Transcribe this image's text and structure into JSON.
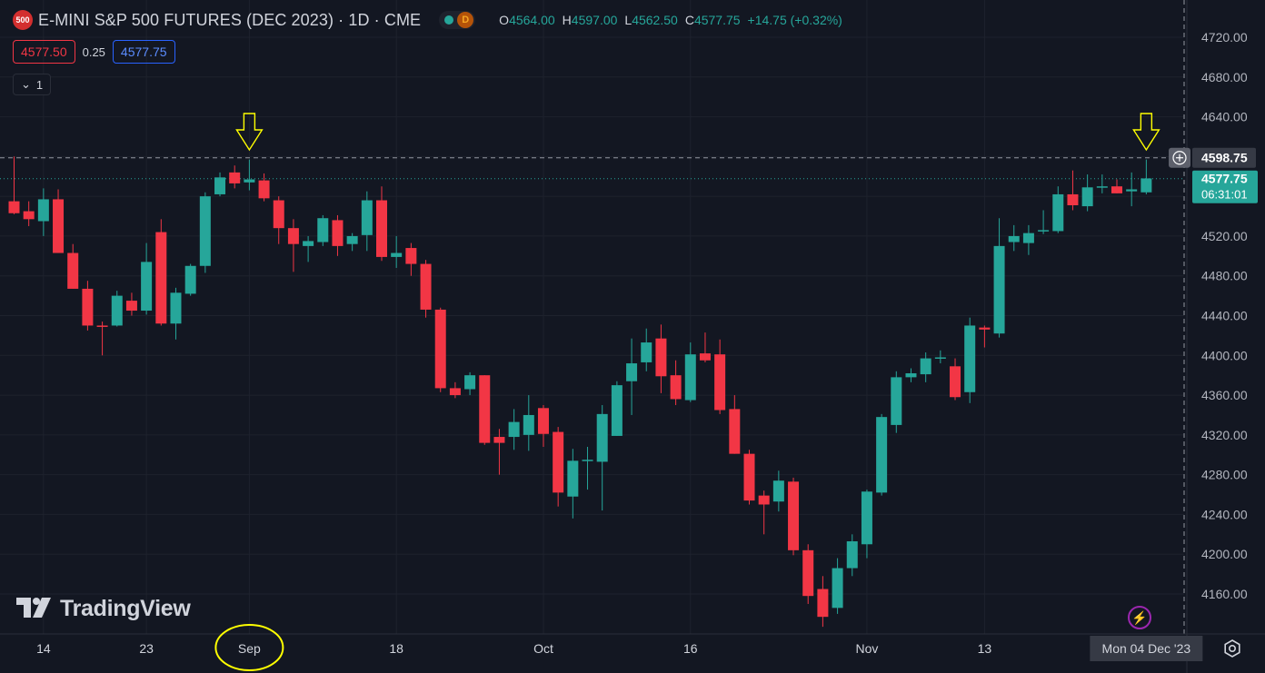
{
  "header": {
    "symbol_badge": "500",
    "title": "E-MINI S&P 500 FUTURES (DEC 2023) · 1D · CME",
    "status_badge": "D",
    "ohlc": {
      "o_label": "O",
      "o_value": "4564.00",
      "h_label": "H",
      "h_value": "4597.00",
      "l_label": "L",
      "l_value": "4562.50",
      "c_label": "C",
      "c_value": "4577.75",
      "change": "+14.75 (+0.32%)"
    }
  },
  "trade": {
    "sell_price": "4577.50",
    "spread": "0.25",
    "buy_price": "4577.75"
  },
  "collapse_button": {
    "chevron": "⌄",
    "count": "1"
  },
  "logo": {
    "text": "TradingView"
  },
  "colors": {
    "up": "#26a69a",
    "down": "#f23645",
    "background": "#131722",
    "grid": "#1e222d",
    "annotation": "#ffff00"
  },
  "chart_data": {
    "type": "candlestick",
    "y_ticks": [
      4160,
      4200,
      4240,
      4280,
      4320,
      4360,
      4400,
      4440,
      4480,
      4520,
      4560,
      4600,
      4640,
      4680,
      4720
    ],
    "y_tick_labels": [
      "4160.00",
      "4200.00",
      "4240.00",
      "4280.00",
      "4320.00",
      "4360.00",
      "4400.00",
      "4440.00",
      "4480.00",
      "4520.00",
      "4560.00",
      "4600.00",
      "4640.00",
      "4680.00",
      "4720.00"
    ],
    "ylim": [
      4128,
      4738
    ],
    "x_tick_labels": [
      {
        "label": "14",
        "index": 2
      },
      {
        "label": "23",
        "index": 9
      },
      {
        "label": "Sep",
        "index": 16
      },
      {
        "label": "18",
        "index": 26
      },
      {
        "label": "Oct",
        "index": 36
      },
      {
        "label": "16",
        "index": 46
      },
      {
        "label": "Nov",
        "index": 58
      },
      {
        "label": "13",
        "index": 66
      }
    ],
    "crosshair_price_label": "4598.75",
    "crosshair_price": 4598.75,
    "last_price_label": "4577.75",
    "last_price": 4577.75,
    "countdown": "06:31:01",
    "date_label": "Mon 04 Dec '23",
    "candles": [
      {
        "o": 4555,
        "h": 4600,
        "l": 4542,
        "c": 4543
      },
      {
        "o": 4545,
        "h": 4555,
        "l": 4530,
        "c": 4537
      },
      {
        "o": 4535,
        "h": 4568,
        "l": 4520,
        "c": 4557
      },
      {
        "o": 4557,
        "h": 4567,
        "l": 4503,
        "c": 4503
      },
      {
        "o": 4503,
        "h": 4512,
        "l": 4467,
        "c": 4467
      },
      {
        "o": 4467,
        "h": 4475,
        "l": 4425,
        "c": 4430
      },
      {
        "o": 4430,
        "h": 4434,
        "l": 4400,
        "c": 4429
      },
      {
        "o": 4430,
        "h": 4465,
        "l": 4429,
        "c": 4460
      },
      {
        "o": 4455,
        "h": 4463,
        "l": 4440,
        "c": 4445
      },
      {
        "o": 4445,
        "h": 4513,
        "l": 4441,
        "c": 4494
      },
      {
        "o": 4524,
        "h": 4537,
        "l": 4430,
        "c": 4432
      },
      {
        "o": 4432,
        "h": 4468,
        "l": 4416,
        "c": 4463
      },
      {
        "o": 4462,
        "h": 4492,
        "l": 4460,
        "c": 4490
      },
      {
        "o": 4490,
        "h": 4564,
        "l": 4483,
        "c": 4560
      },
      {
        "o": 4562,
        "h": 4584,
        "l": 4560,
        "c": 4579
      },
      {
        "o": 4584,
        "h": 4591,
        "l": 4568,
        "c": 4573
      },
      {
        "o": 4574,
        "h": 4597,
        "l": 4566,
        "c": 4577
      },
      {
        "o": 4576,
        "h": 4583,
        "l": 4555,
        "c": 4558
      },
      {
        "o": 4556,
        "h": 4560,
        "l": 4512,
        "c": 4528
      },
      {
        "o": 4528,
        "h": 4537,
        "l": 4484,
        "c": 4512
      },
      {
        "o": 4510,
        "h": 4520,
        "l": 4494,
        "c": 4515
      },
      {
        "o": 4514,
        "h": 4541,
        "l": 4510,
        "c": 4538
      },
      {
        "o": 4536,
        "h": 4541,
        "l": 4500,
        "c": 4510
      },
      {
        "o": 4512,
        "h": 4523,
        "l": 4505,
        "c": 4520
      },
      {
        "o": 4521,
        "h": 4565,
        "l": 4505,
        "c": 4556
      },
      {
        "o": 4556,
        "h": 4570,
        "l": 4495,
        "c": 4499
      },
      {
        "o": 4499,
        "h": 4520,
        "l": 4488,
        "c": 4503
      },
      {
        "o": 4508,
        "h": 4513,
        "l": 4480,
        "c": 4492
      },
      {
        "o": 4492,
        "h": 4496,
        "l": 4438,
        "c": 4446
      },
      {
        "o": 4446,
        "h": 4448,
        "l": 4363,
        "c": 4367
      },
      {
        "o": 4367,
        "h": 4373,
        "l": 4357,
        "c": 4360
      },
      {
        "o": 4366,
        "h": 4383,
        "l": 4360,
        "c": 4380
      },
      {
        "o": 4380,
        "h": 4380,
        "l": 4310,
        "c": 4312
      },
      {
        "o": 4318,
        "h": 4326,
        "l": 4280,
        "c": 4312
      },
      {
        "o": 4318,
        "h": 4346,
        "l": 4305,
        "c": 4333
      },
      {
        "o": 4320,
        "h": 4360,
        "l": 4304,
        "c": 4340
      },
      {
        "o": 4347,
        "h": 4350,
        "l": 4308,
        "c": 4321
      },
      {
        "o": 4323,
        "h": 4328,
        "l": 4248,
        "c": 4262
      },
      {
        "o": 4258,
        "h": 4306,
        "l": 4236,
        "c": 4294
      },
      {
        "o": 4294,
        "h": 4308,
        "l": 4265,
        "c": 4295
      },
      {
        "o": 4293,
        "h": 4350,
        "l": 4244,
        "c": 4341
      },
      {
        "o": 4319,
        "h": 4374,
        "l": 4319,
        "c": 4370
      },
      {
        "o": 4374,
        "h": 4417,
        "l": 4340,
        "c": 4392
      },
      {
        "o": 4393,
        "h": 4427,
        "l": 4384,
        "c": 4413
      },
      {
        "o": 4417,
        "h": 4431,
        "l": 4362,
        "c": 4379
      },
      {
        "o": 4380,
        "h": 4395,
        "l": 4350,
        "c": 4356
      },
      {
        "o": 4355,
        "h": 4413,
        "l": 4353,
        "c": 4401
      },
      {
        "o": 4402,
        "h": 4423,
        "l": 4393,
        "c": 4395
      },
      {
        "o": 4401,
        "h": 4416,
        "l": 4341,
        "c": 4345
      },
      {
        "o": 4346,
        "h": 4360,
        "l": 4301,
        "c": 4301
      },
      {
        "o": 4301,
        "h": 4305,
        "l": 4250,
        "c": 4254
      },
      {
        "o": 4259,
        "h": 4264,
        "l": 4220,
        "c": 4250
      },
      {
        "o": 4253,
        "h": 4284,
        "l": 4243,
        "c": 4274
      },
      {
        "o": 4273,
        "h": 4277,
        "l": 4199,
        "c": 4204
      },
      {
        "o": 4204,
        "h": 4210,
        "l": 4150,
        "c": 4158
      },
      {
        "o": 4165,
        "h": 4178,
        "l": 4127,
        "c": 4137
      },
      {
        "o": 4146,
        "h": 4196,
        "l": 4140,
        "c": 4186
      },
      {
        "o": 4186,
        "h": 4220,
        "l": 4178,
        "c": 4213
      },
      {
        "o": 4210,
        "h": 4265,
        "l": 4196,
        "c": 4263
      },
      {
        "o": 4262,
        "h": 4341,
        "l": 4259,
        "c": 4338
      },
      {
        "o": 4330,
        "h": 4384,
        "l": 4322,
        "c": 4378
      },
      {
        "o": 4378,
        "h": 4387,
        "l": 4373,
        "c": 4382
      },
      {
        "o": 4381,
        "h": 4403,
        "l": 4373,
        "c": 4397
      },
      {
        "o": 4398,
        "h": 4405,
        "l": 4392,
        "c": 4398
      },
      {
        "o": 4389,
        "h": 4397,
        "l": 4355,
        "c": 4358
      },
      {
        "o": 4363,
        "h": 4438,
        "l": 4352,
        "c": 4430
      },
      {
        "o": 4428,
        "h": 4430,
        "l": 4408,
        "c": 4426
      },
      {
        "o": 4422,
        "h": 4538,
        "l": 4418,
        "c": 4510
      },
      {
        "o": 4514,
        "h": 4531,
        "l": 4505,
        "c": 4520
      },
      {
        "o": 4513,
        "h": 4531,
        "l": 4501,
        "c": 4523
      },
      {
        "o": 4525,
        "h": 4546,
        "l": 4522,
        "c": 4526
      },
      {
        "o": 4525,
        "h": 4570,
        "l": 4523,
        "c": 4562
      },
      {
        "o": 4562,
        "h": 4586,
        "l": 4546,
        "c": 4551
      },
      {
        "o": 4550,
        "h": 4582,
        "l": 4545,
        "c": 4569
      },
      {
        "o": 4569,
        "h": 4582,
        "l": 4563,
        "c": 4570
      },
      {
        "o": 4570,
        "h": 4577,
        "l": 4563,
        "c": 4563
      },
      {
        "o": 4565,
        "h": 4584,
        "l": 4550,
        "c": 4567
      },
      {
        "o": 4564,
        "h": 4597,
        "l": 4562,
        "c": 4578
      }
    ],
    "annotations": {
      "arrows_at_index": [
        16,
        77
      ],
      "circled_label": "Sep"
    }
  }
}
